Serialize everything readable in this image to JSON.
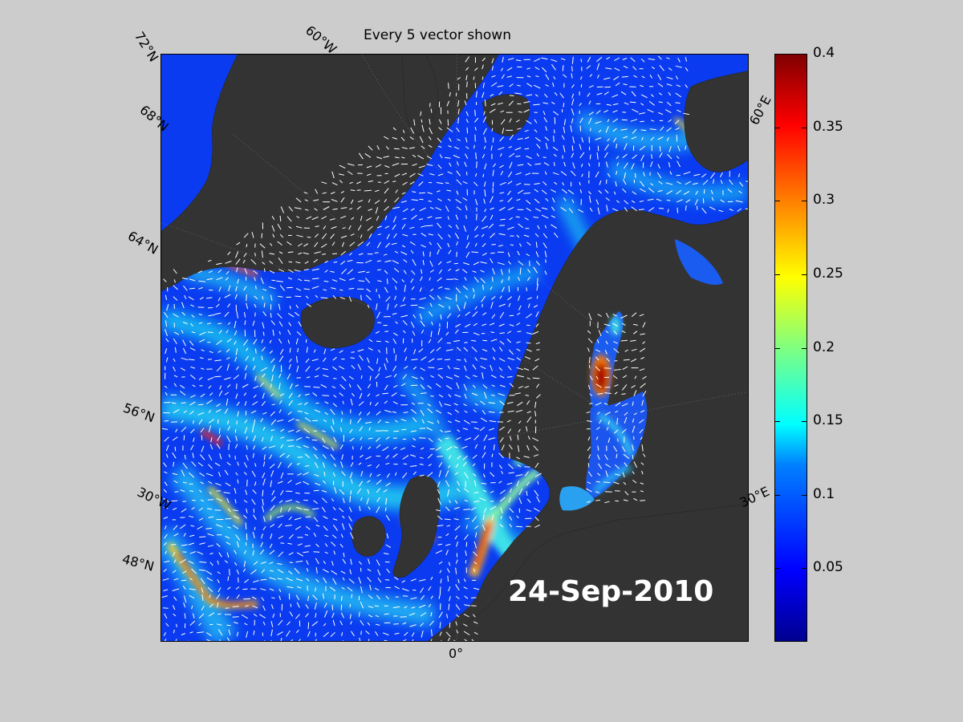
{
  "title": "Every 5 vector shown",
  "date": "24-Sep-2010",
  "lat_labels": [
    "72°N",
    "68°N",
    "64°N",
    "56°N",
    "48°N"
  ],
  "lon_labels": [
    "60°W",
    "30°W",
    "0°",
    "30°E",
    "60°E"
  ],
  "colors": {
    "land": "#333333",
    "ocean_low": "#0a3bf0",
    "vector": "#ffffff",
    "figure_bg": "#cccccc"
  },
  "colorbar": {
    "colormap": "jet",
    "min": 0,
    "max": 0.4,
    "ticks": [
      "0.4",
      "0.35",
      "0.3",
      "0.25",
      "0.2",
      "0.15",
      "0.1",
      "0.05"
    ],
    "tick_values": [
      0.4,
      0.35,
      0.3,
      0.25,
      0.2,
      0.15,
      0.1,
      0.05
    ]
  }
}
